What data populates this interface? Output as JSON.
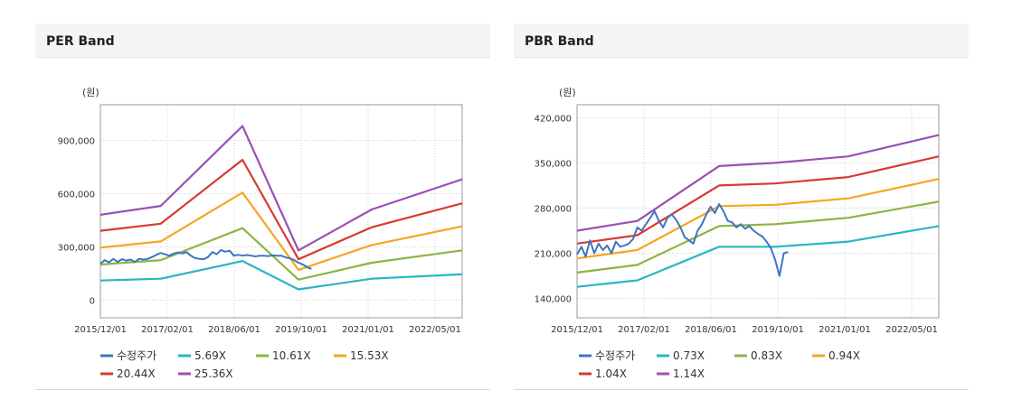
{
  "panels": [
    {
      "title": "PER Band",
      "unit": "(원)"
    },
    {
      "title": "PBR Band",
      "unit": "(원)"
    }
  ],
  "chart_data": [
    {
      "type": "line",
      "title": "PER Band",
      "ylabel": "(원)",
      "x_ticks": [
        "2015/12/01",
        "2017/02/01",
        "2018/06/01",
        "2019/10/01",
        "2021/01/01",
        "2022/05/01"
      ],
      "y_ticks": [
        0,
        300000,
        600000,
        900000
      ],
      "ylim": [
        -100000,
        1100000
      ],
      "xlim": [
        0,
        84
      ],
      "series": [
        {
          "name": "수정주가",
          "color": "#3d74c5",
          "x": [
            0,
            1,
            2,
            3,
            4,
            5,
            6,
            7,
            8,
            9,
            10,
            11,
            12,
            13,
            14,
            15,
            16,
            17,
            18,
            19,
            20,
            21,
            22,
            23,
            24,
            25,
            26,
            27,
            28,
            29,
            30,
            31,
            32,
            33,
            34,
            35,
            36,
            37,
            38,
            39,
            40,
            41,
            42,
            43,
            44,
            45,
            46,
            47,
            48,
            49
          ],
          "values": [
            205000,
            225000,
            212000,
            232000,
            215000,
            230000,
            222000,
            228000,
            215000,
            232000,
            228000,
            232000,
            242000,
            255000,
            265000,
            258000,
            250000,
            262000,
            268000,
            262000,
            270000,
            250000,
            236000,
            232000,
            230000,
            242000,
            270000,
            258000,
            282000,
            272000,
            278000,
            250000,
            255000,
            250000,
            254000,
            250000,
            246000,
            250000,
            250000,
            248000,
            252000,
            250000,
            250000,
            240000,
            235000,
            225000,
            210000,
            200000,
            185000,
            175000
          ]
        },
        {
          "name": "5.69X",
          "color": "#2ab5c2",
          "x": [
            0,
            14,
            33,
            46,
            63,
            84
          ],
          "values": [
            110000,
            120000,
            220000,
            60000,
            120000,
            145000
          ]
        },
        {
          "name": "10.61X",
          "color": "#8cb443",
          "x": [
            0,
            14,
            33,
            46,
            63,
            84
          ],
          "values": [
            200000,
            225000,
            405000,
            115000,
            210000,
            280000
          ]
        },
        {
          "name": "15.53X",
          "color": "#f4a621",
          "x": [
            0,
            14,
            33,
            46,
            63,
            84
          ],
          "values": [
            295000,
            330000,
            605000,
            170000,
            310000,
            415000
          ]
        },
        {
          "name": "20.44X",
          "color": "#d63b32",
          "x": [
            0,
            14,
            33,
            46,
            63,
            84
          ],
          "values": [
            390000,
            430000,
            790000,
            230000,
            410000,
            545000
          ]
        },
        {
          "name": "25.36X",
          "color": "#9951b3",
          "x": [
            0,
            14,
            33,
            46,
            63,
            84
          ],
          "values": [
            480000,
            530000,
            980000,
            280000,
            510000,
            680000
          ]
        }
      ]
    },
    {
      "type": "line",
      "title": "PBR Band",
      "ylabel": "(원)",
      "x_ticks": [
        "2015/12/01",
        "2017/02/01",
        "2018/06/01",
        "2019/10/01",
        "2021/01/01",
        "2022/05/01"
      ],
      "y_ticks": [
        140000,
        210000,
        280000,
        350000,
        420000
      ],
      "ylim": [
        110000,
        440000
      ],
      "xlim": [
        0,
        84
      ],
      "series": [
        {
          "name": "수정주가",
          "color": "#3d74c5",
          "x": [
            0,
            1,
            2,
            3,
            4,
            5,
            6,
            7,
            8,
            9,
            10,
            11,
            12,
            13,
            14,
            15,
            16,
            17,
            18,
            19,
            20,
            21,
            22,
            23,
            24,
            25,
            26,
            27,
            28,
            29,
            30,
            31,
            32,
            33,
            34,
            35,
            36,
            37,
            38,
            39,
            40,
            41,
            42,
            43,
            44,
            45,
            46,
            47,
            48,
            49
          ],
          "values": [
            208000,
            220000,
            205000,
            230000,
            210000,
            225000,
            215000,
            222000,
            210000,
            228000,
            220000,
            222000,
            225000,
            232000,
            250000,
            245000,
            255000,
            265000,
            275000,
            260000,
            250000,
            265000,
            270000,
            262000,
            250000,
            235000,
            230000,
            225000,
            245000,
            255000,
            270000,
            282000,
            272000,
            286000,
            275000,
            260000,
            258000,
            250000,
            255000,
            248000,
            252000,
            245000,
            240000,
            236000,
            228000,
            218000,
            200000,
            175000,
            210000,
            212000
          ]
        },
        {
          "name": "0.73X",
          "color": "#2ab5c2",
          "x": [
            0,
            14,
            33,
            46,
            63,
            84
          ],
          "values": [
            158000,
            168000,
            220000,
            220000,
            228000,
            252000
          ]
        },
        {
          "name": "0.83X",
          "color": "#8cb443",
          "x": [
            0,
            14,
            33,
            46,
            63,
            84
          ],
          "values": [
            180000,
            192000,
            252000,
            255000,
            265000,
            290000
          ]
        },
        {
          "name": "0.94X",
          "color": "#f4a621",
          "x": [
            0,
            14,
            33,
            46,
            63,
            84
          ],
          "values": [
            202000,
            215000,
            283000,
            285000,
            295000,
            325000
          ]
        },
        {
          "name": "1.04X",
          "color": "#d63b32",
          "x": [
            0,
            14,
            33,
            46,
            63,
            84
          ],
          "values": [
            225000,
            238000,
            315000,
            318000,
            328000,
            360000
          ]
        },
        {
          "name": "1.14X",
          "color": "#9951b3",
          "x": [
            0,
            14,
            33,
            46,
            63,
            84
          ],
          "values": [
            245000,
            260000,
            345000,
            350000,
            360000,
            393000
          ]
        }
      ]
    }
  ]
}
